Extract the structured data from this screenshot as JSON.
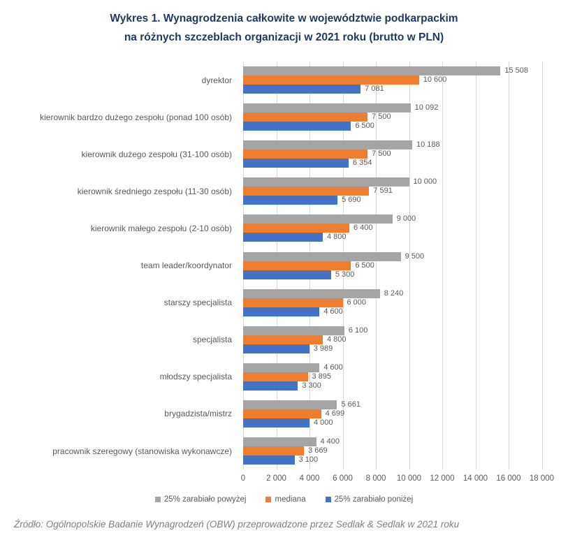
{
  "header": {
    "title_line1": "Wykres 1. Wynagrodzenia całkowite w województwie podkarpackim",
    "title_line2": "na różnych szczeblach organizacji w 2021 roku (brutto w PLN)"
  },
  "chart_data": {
    "type": "bar",
    "orientation": "horizontal",
    "title": "Wykres 1. Wynagrodzenia całkowite w województwie podkarpackim na różnych szczeblach organizacji w 2021 roku (brutto w PLN)",
    "categories": [
      "dyrektor",
      "kierownik bardzo dużego zespołu (ponad 100 osób)",
      "kierownik dużego zespołu (31-100 osób)",
      "kierownik średniego zespołu (11-30 osób)",
      "kierownik małego zespołu (2-10 osób)",
      "team leader/koordynator",
      "starszy specjalista",
      "specjalista",
      "młodszy specjalista",
      "brygadzista/mistrz",
      "pracownik szeregowy (stanowiska wykonawcze)"
    ],
    "series": [
      {
        "name": "25% zarabiało powyżej",
        "color": "#a5a5a5",
        "values": [
          15508,
          10092,
          10188,
          10000,
          9000,
          9500,
          8240,
          6100,
          4600,
          5661,
          4400
        ]
      },
      {
        "name": "mediana",
        "color": "#ed7d31",
        "values": [
          10600,
          7500,
          7500,
          7591,
          6400,
          6500,
          6000,
          4800,
          3895,
          4699,
          3669
        ]
      },
      {
        "name": "25% zarabiało poniżej",
        "color": "#4472c4",
        "values": [
          7081,
          6500,
          6354,
          5690,
          4800,
          5300,
          4600,
          3989,
          3300,
          4000,
          3100
        ]
      }
    ],
    "xlim": [
      0,
      18000
    ],
    "x_ticks": [
      0,
      2000,
      4000,
      6000,
      8000,
      10000,
      12000,
      14000,
      16000,
      18000
    ],
    "x_tick_labels": [
      "0",
      "2 000",
      "4 000",
      "6 000",
      "8 000",
      "10 000",
      "12 000",
      "14 000",
      "16 000",
      "18 000"
    ],
    "grid": "vertical",
    "gridline_color": "#d9d9d9",
    "value_labels": true,
    "legend_position": "bottom"
  },
  "source": "Źródło: Ogólnopolskie Badanie Wynagrodzeń (OBW) przeprowadzone przez Sedlak & Sedlak w 2021 roku"
}
